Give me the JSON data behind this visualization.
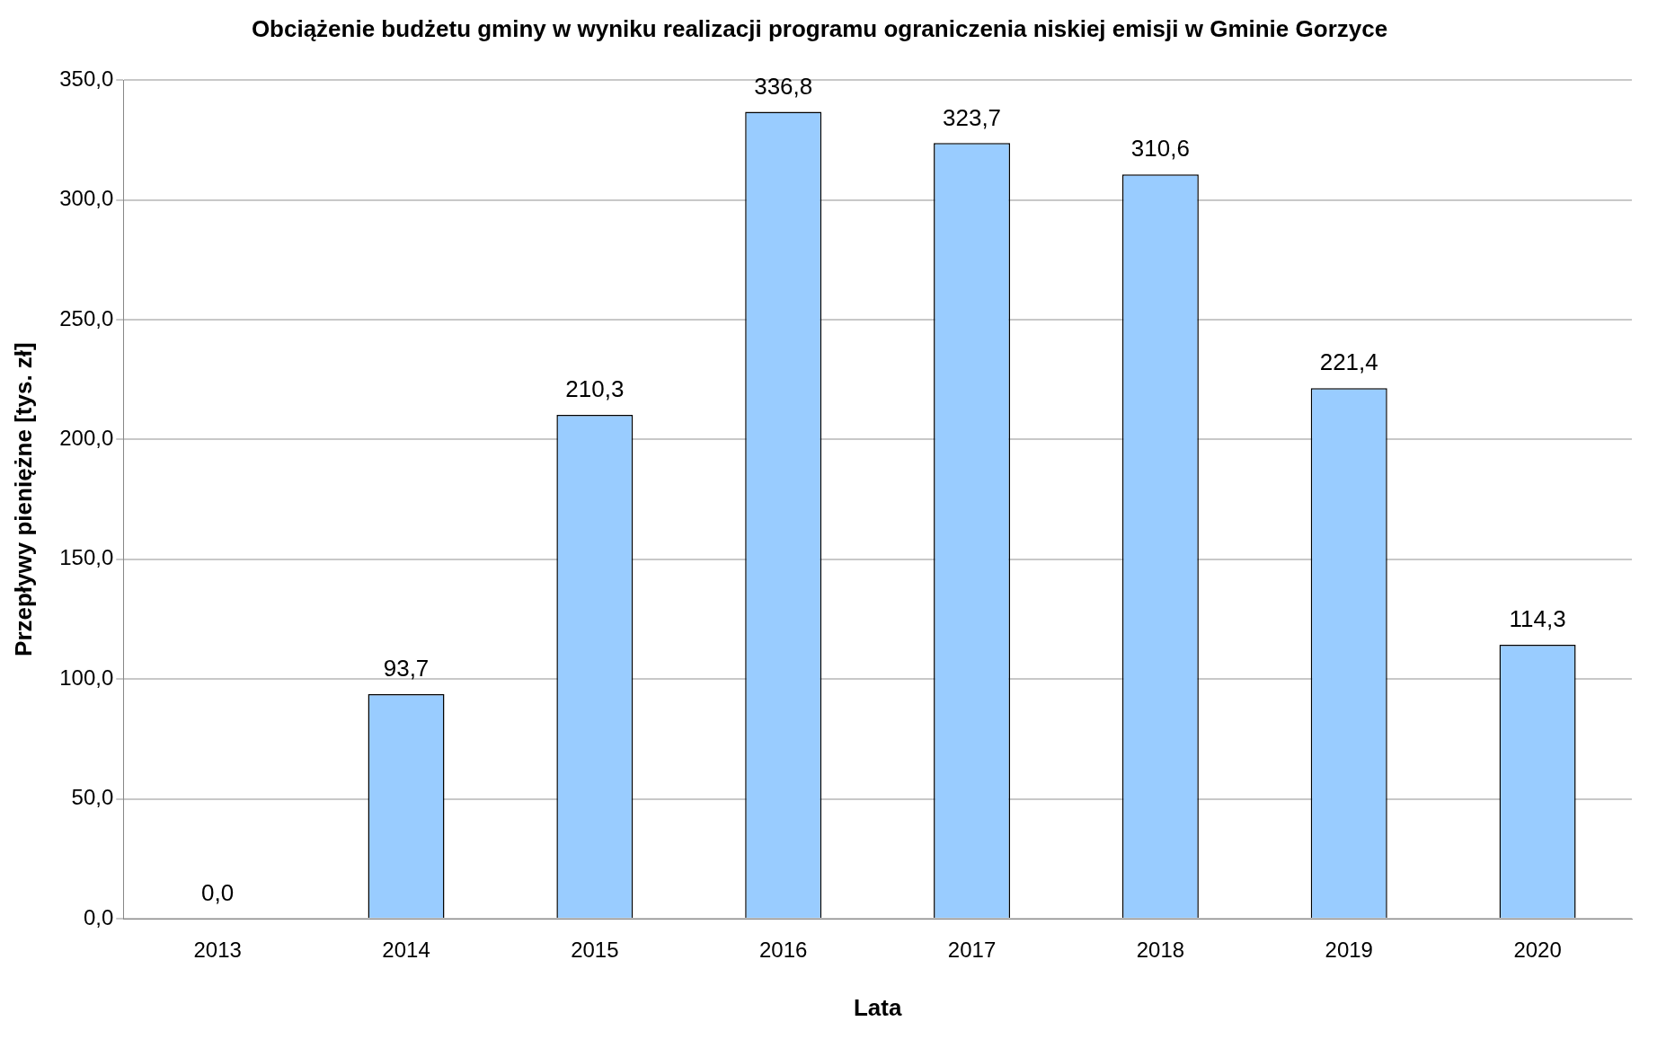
{
  "chart_data": {
    "type": "bar",
    "title": "Obciążenie budżetu gminy w wyniku realizacji programu ograniczenia niskiej emisji w Gminie Gorzyce",
    "xlabel": "Lata",
    "ylabel": "Przepływy pieniężne [tys. zł]",
    "categories": [
      "2013",
      "2014",
      "2015",
      "2016",
      "2017",
      "2018",
      "2019",
      "2020"
    ],
    "series": [
      {
        "color": "#99ccff",
        "values": [
          0,
          93.7,
          210.3,
          336.8,
          323.7,
          310.6,
          221.4,
          114.3
        ],
        "value_labels": [
          "0,0",
          "93,7",
          "210,3",
          "336,8",
          "323,7",
          "310,6",
          "221,4",
          "114,3"
        ]
      }
    ],
    "ylim": [
      0,
      350
    ],
    "yticks": [
      {
        "value": 0,
        "label": "0,0"
      },
      {
        "value": 50,
        "label": "50,0"
      },
      {
        "value": 100,
        "label": "100,0"
      },
      {
        "value": 150,
        "label": "150,0"
      },
      {
        "value": 200,
        "label": "200,0"
      },
      {
        "value": 250,
        "label": "250,0"
      },
      {
        "value": 300,
        "label": "300,0"
      },
      {
        "value": 350,
        "label": "350,0"
      }
    ],
    "grid": "y",
    "legend": false
  }
}
